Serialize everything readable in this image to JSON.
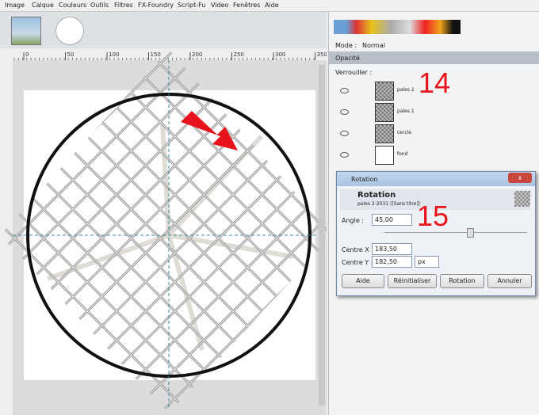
{
  "menu": [
    "Image",
    "Calque",
    "Couleurs",
    "Outils",
    "Filtres",
    "FX-Foundry",
    "Script-Fu",
    "Video",
    "Fenêtres",
    "Aide"
  ],
  "ruler": [
    "0",
    "50",
    "100",
    "150",
    "200",
    "250",
    "300",
    "350"
  ],
  "panel": {
    "mode_label": "Mode :",
    "mode_value": "Normal",
    "opacity_label": "Opacité",
    "lock_label": "Verrouiller :"
  },
  "layers": [
    "pales 2",
    "pales 1",
    "cercle",
    "fond"
  ],
  "annotations": [
    "14",
    "15"
  ],
  "dialog": {
    "window_title": "Rotation",
    "heading": "Rotation",
    "subtitle": "pales 2-2031 ([Sans titre])",
    "angle_label": "Angle :",
    "angle_value": "45,00",
    "center_x_label": "Centre X :",
    "center_x_value": "183,50",
    "center_y_label": "Centre Y :",
    "center_y_value": "182,50",
    "unit": "px",
    "buttons": [
      "Aide",
      "Réinitialiser",
      "Rotation",
      "Annuler"
    ]
  }
}
